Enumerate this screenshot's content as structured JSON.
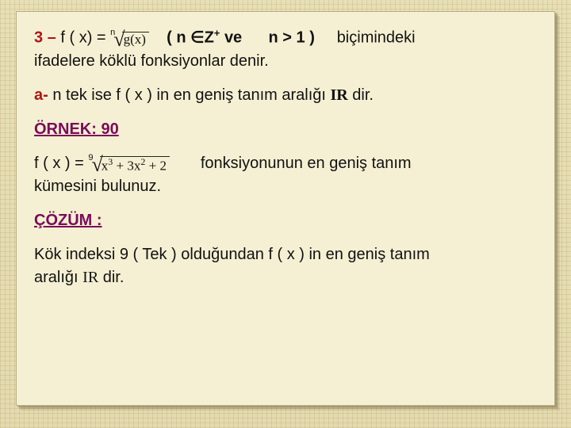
{
  "colors": {
    "page_bg_base": "#e7dfb5",
    "page_bg_grid": "rgba(170,150,90,0.22)",
    "card_bg": "#f5f0d3",
    "card_border": "#b9af82",
    "text": "#111111",
    "accent_red": "#b01414",
    "accent_purple": "#7a0b59"
  },
  "typography": {
    "body_font": "Arial",
    "body_size_pt": 15,
    "formula_font": "Times New Roman"
  },
  "def": {
    "num": "3 –",
    "lhs": "f ( x)  =",
    "root_index": "n",
    "radicand": "g(x)",
    "cond_open": "(  n ",
    "cond_in": "∈",
    "cond_set": "Z",
    "cond_plus": "+",
    "cond_and": "  ve",
    "cond_gt": "n > 1 )",
    "tail": "biçimindeki",
    "line2": "ifadelere köklü fonksiyonlar denir."
  },
  "caseA": {
    "label": "a-",
    "text_1": " n  tek  ise  f ( x ) in en geniş tanım aralığı ",
    "ir": "IR",
    "text_2": " dir."
  },
  "example": {
    "head": "ÖRNEK: 90",
    "lhs": "f ( x )  =",
    "root_index": "9",
    "radicand_terms": [
      "x",
      "3",
      " + 3x",
      "2",
      " + 2"
    ],
    "tail_1": "fonksiyonunun  en  geniş   tanım",
    "line2": "kümesini   bulunuz."
  },
  "solution": {
    "head": "ÇÖZÜM :",
    "line1": "Kök   indeksi  9  ( Tek )   olduğundan f  ( x ) in en geniş tanım",
    "line2_a": "aralığı  ",
    "ir": "IR",
    "line2_b": " dir."
  }
}
